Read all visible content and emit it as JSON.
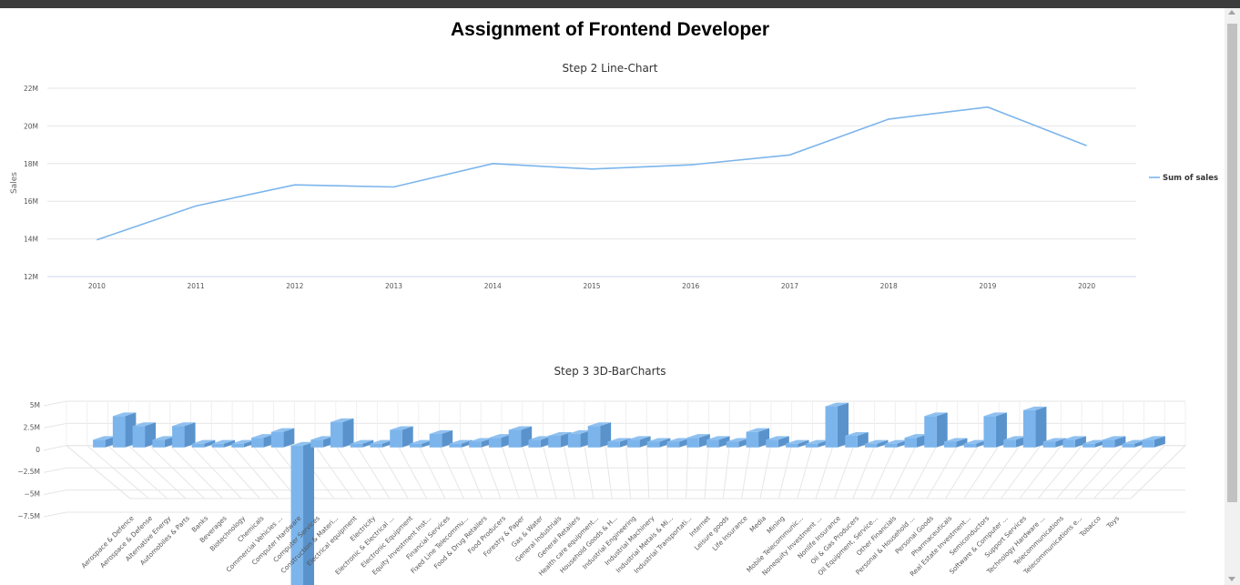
{
  "page": {
    "title": "Assignment of Frontend Developer"
  },
  "chart_data": [
    {
      "type": "line",
      "title": "Step 2 Line-Chart",
      "ylabel": "Sales",
      "x": [
        "2010",
        "2011",
        "2012",
        "2013",
        "2014",
        "2015",
        "2016",
        "2017",
        "2018",
        "2019",
        "2020"
      ],
      "series": [
        {
          "name": "Sum of sales",
          "values": [
            13950000,
            15750000,
            16870000,
            16760000,
            18000000,
            17710000,
            17930000,
            18460000,
            20360000,
            21000000,
            18950000
          ]
        }
      ],
      "ylim": [
        12000000,
        22000000
      ],
      "yticks": [
        {
          "value": 12000000,
          "label": "12M"
        },
        {
          "value": 14000000,
          "label": "14M"
        },
        {
          "value": 16000000,
          "label": "16M"
        },
        {
          "value": 18000000,
          "label": "18M"
        },
        {
          "value": 20000000,
          "label": "20M"
        },
        {
          "value": 22000000,
          "label": "22M"
        }
      ],
      "grid": true,
      "legend": "right",
      "color": "#7cb5ec"
    },
    {
      "type": "bar",
      "title": "Step 3 3D-BarCharts",
      "categories": [
        "Aerospace & Defence",
        "Aerospace & Defense",
        "Alternative Energy",
        "Automobiles & Parts",
        "Banks",
        "Beverages",
        "Biotechnology",
        "Chemicals",
        "Commercial Vehicles ...",
        "Computer Hardware",
        "Computer Services",
        "Construction & Materi...",
        "Electrical equipment",
        "Electricity",
        "Electronic & Electrical ...",
        "Electronic Equipment",
        "Equity Investment Inst...",
        "Financial Services",
        "Fixed Line Telecommu...",
        "Food & Drug Retailers",
        "Food Producers",
        "Forestry & Paper",
        "Gas & Water",
        "General Industrials",
        "General Retailers",
        "Health care equipment...",
        "Household Goods & H...",
        "Industrial Engineering",
        "Industrial Machinery",
        "Industrial Metals & Mi...",
        "Industrial Transportati...",
        "Internet",
        "Leisure goods",
        "Life Insurance",
        "Media",
        "Mining",
        "Mobile Telecommunic...",
        "Nonequity Investment ...",
        "Nonlife Insurance",
        "Oil & Gas Producers",
        "Oil Equipment, Service...",
        "Other Financials",
        "Personal & Household ...",
        "Personal Goods",
        "Pharmaceuticals",
        "Real Estate Investment...",
        "Semiconductors",
        "Software & Computer ...",
        "Support Services",
        "Technology Hardware ...",
        "Telecommunications",
        "Telecommunications e...",
        "Tobacco",
        "Toys"
      ],
      "values": [
        300000,
        1500000,
        1000000,
        300000,
        1000000,
        100000,
        100000,
        100000,
        400000,
        700000,
        -7500000,
        300000,
        1200000,
        100000,
        100000,
        800000,
        100000,
        600000,
        100000,
        200000,
        400000,
        800000,
        300000,
        500000,
        600000,
        1000000,
        200000,
        300000,
        200000,
        200000,
        400000,
        300000,
        200000,
        700000,
        300000,
        100000,
        100000,
        2000000,
        500000,
        100000,
        100000,
        400000,
        1500000,
        200000,
        100000,
        1500000,
        300000,
        1800000,
        200000,
        300000,
        100000,
        300000,
        100000,
        300000
      ],
      "ylim": [
        -7500000,
        5000000
      ],
      "yticks": [
        {
          "value": 5000000,
          "label": "5M"
        },
        {
          "value": 2500000,
          "label": "2.5M"
        },
        {
          "value": 0,
          "label": "0"
        },
        {
          "value": -2500000,
          "label": "−2.5M"
        },
        {
          "value": -5000000,
          "label": "−5M"
        },
        {
          "value": -7500000,
          "label": "−7.5M"
        }
      ],
      "grid": true,
      "color": "#7cb5ec"
    }
  ]
}
